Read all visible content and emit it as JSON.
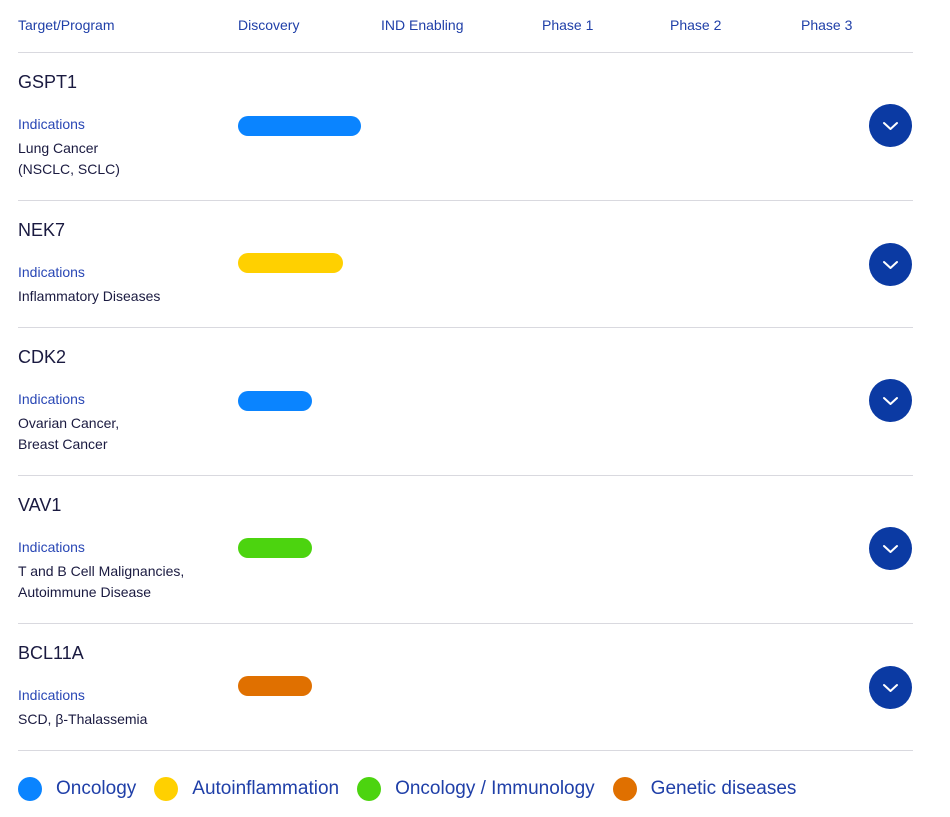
{
  "header": {
    "columns": [
      "Target/Program",
      "Discovery",
      "IND Enabling",
      "Phase 1",
      "Phase 2",
      "Phase 3"
    ]
  },
  "programs": [
    {
      "name": "GSPT1",
      "indications_label": "Indications",
      "indications": [
        "Lung Cancer",
        "(NSCLC, SCLC)"
      ],
      "category": "Oncology",
      "progress": 0.44
    },
    {
      "name": "NEK7",
      "indications_label": "Indications",
      "indications": [
        "Inflammatory Diseases"
      ],
      "category": "Autoinflammation",
      "progress": 0.375
    },
    {
      "name": "CDK2",
      "indications_label": "Indications",
      "indications": [
        "Ovarian Cancer,",
        "Breast Cancer"
      ],
      "category": "Oncology",
      "progress": 0.265
    },
    {
      "name": "VAV1",
      "indications_label": "Indications",
      "indications": [
        "T and B Cell Malignancies,",
        "Autoimmune Disease"
      ],
      "category": "Oncology / Immunology",
      "progress": 0.265
    },
    {
      "name": "BCL11A",
      "indications_label": "Indications",
      "indications": [
        "SCD, β-Thalassemia"
      ],
      "category": "Genetic diseases",
      "progress": 0.265
    }
  ],
  "legend": [
    {
      "label": "Oncology",
      "color": "#0a84ff"
    },
    {
      "label": "Autoinflammation",
      "color": "#ffd000"
    },
    {
      "label": "Oncology / Immunology",
      "color": "#4cd40f"
    },
    {
      "label": "Genetic diseases",
      "color": "#e07000"
    }
  ],
  "icons": {
    "expand": "chevron-down-icon"
  }
}
